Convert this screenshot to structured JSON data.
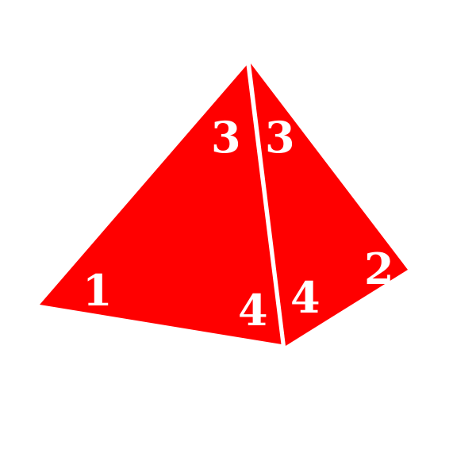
{
  "scene": {
    "object": "tetrahedral-die",
    "colors": {
      "background": "#ffffff",
      "die_face": "#ff0000",
      "edge": "#ffffff",
      "number": "#ffffff"
    },
    "left_face": {
      "numbers": [
        "3",
        "1",
        "4"
      ]
    },
    "right_face": {
      "numbers": [
        "3",
        "2",
        "4"
      ]
    }
  }
}
